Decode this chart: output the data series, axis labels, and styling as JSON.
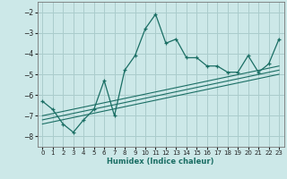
{
  "title": "",
  "xlabel": "Humidex (Indice chaleur)",
  "ylabel": "",
  "bg_color": "#cce8e8",
  "grid_color": "#aacccc",
  "line_color": "#1a6e64",
  "xlim": [
    -0.5,
    23.5
  ],
  "ylim": [
    -8.5,
    -1.5
  ],
  "xticks": [
    0,
    1,
    2,
    3,
    4,
    5,
    6,
    7,
    8,
    9,
    10,
    11,
    12,
    13,
    14,
    15,
    16,
    17,
    18,
    19,
    20,
    21,
    22,
    23
  ],
  "yticks": [
    -8,
    -7,
    -6,
    -5,
    -4,
    -3,
    -2
  ],
  "main_x": [
    0,
    1,
    2,
    3,
    4,
    5,
    6,
    7,
    8,
    9,
    10,
    11,
    12,
    13,
    14,
    15,
    16,
    17,
    18,
    19,
    20,
    21,
    22,
    23
  ],
  "main_y": [
    -6.3,
    -6.7,
    -7.4,
    -7.8,
    -7.2,
    -6.7,
    -5.3,
    -7.0,
    -4.8,
    -4.1,
    -2.8,
    -2.1,
    -3.5,
    -3.3,
    -4.2,
    -4.2,
    -4.6,
    -4.6,
    -4.9,
    -4.9,
    -4.1,
    -4.9,
    -4.5,
    -3.3
  ],
  "line1_x": [
    0,
    23
  ],
  "line1_y": [
    -7.0,
    -4.6
  ],
  "line2_x": [
    0,
    23
  ],
  "line2_y": [
    -7.2,
    -4.8
  ],
  "line3_x": [
    0,
    23
  ],
  "line3_y": [
    -7.4,
    -5.0
  ]
}
